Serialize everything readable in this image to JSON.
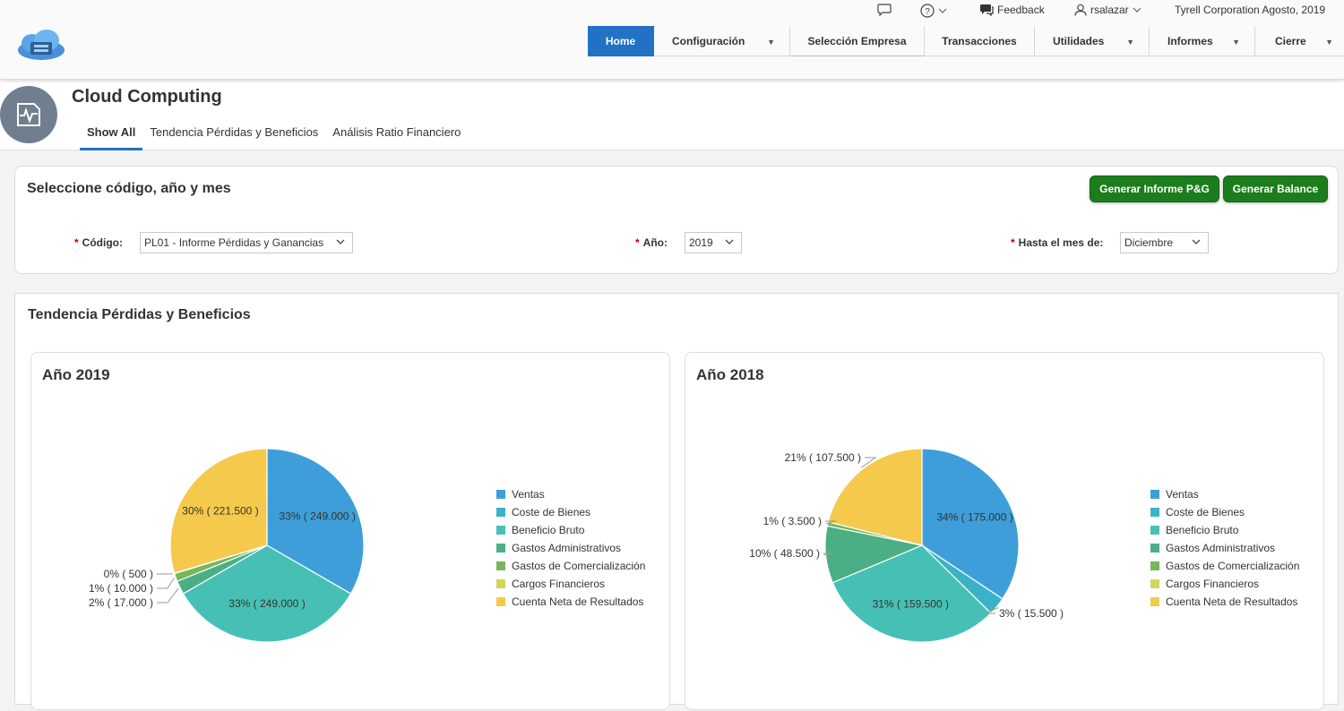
{
  "header": {
    "feedback_label": "Feedback",
    "user": "rsalazar",
    "company_date": "Tyrell Corporation Agosto, 2019",
    "nav": [
      {
        "label": "Home",
        "active": true,
        "dropdown": false
      },
      {
        "label": "Configuración",
        "active": false,
        "dropdown": true
      },
      {
        "label": "Selección Empresa",
        "active": false,
        "dropdown": false
      },
      {
        "label": "Transacciones",
        "active": false,
        "dropdown": false
      },
      {
        "label": "Utilidades",
        "active": false,
        "dropdown": true
      },
      {
        "label": "Informes",
        "active": false,
        "dropdown": true
      },
      {
        "label": "Cierre",
        "active": false,
        "dropdown": true
      }
    ]
  },
  "page": {
    "title": "Cloud Computing",
    "tabs": [
      {
        "label": "Show All",
        "active": true
      },
      {
        "label": "Tendencia Pérdidas y Beneficios",
        "active": false
      },
      {
        "label": "Análisis Ratio Financiero",
        "active": false
      }
    ]
  },
  "filters": {
    "title": "Seleccione código, año y mes",
    "btn_pg": "Generar Informe P&G",
    "btn_balance": "Generar Balance",
    "codigo_label": "Código:",
    "codigo_value": "PL01 - Informe Pérdidas y Ganancias",
    "anio_label": "Año:",
    "anio_value": "2019",
    "mes_label": "Hasta el mes de:",
    "mes_value": "Diciembre"
  },
  "section_title": "Tendencia Pérdidas y Beneficios",
  "colors": {
    "accent": "#2172c5",
    "button_green": "#1c7d1c",
    "legend": [
      "#3e9ed9",
      "#3ab3c8",
      "#46c0b5",
      "#4aaf84",
      "#78b55c",
      "#cfd65a",
      "#f5c94c"
    ]
  },
  "chart_data": [
    {
      "type": "pie",
      "title": "Año 2019",
      "legend": [
        "Ventas",
        "Coste de Bienes",
        "Beneficio Bruto",
        "Gastos Administrativos",
        "Gastos de Comercialización",
        "Cargos Financieros",
        "Cuenta Neta de Resultados"
      ],
      "labels": [
        "Ventas",
        "Beneficio Bruto",
        "Gastos Administrativos",
        "Gastos de Comercialización",
        "Cargos Financieros",
        "Cuenta Neta de Resultados"
      ],
      "values": [
        249000,
        249000,
        17000,
        10000,
        500,
        221500
      ],
      "slice_labels": [
        "33% ( 249.000 )",
        "33% ( 249.000 )",
        "2% ( 17.000 )",
        "1% ( 10.000 )",
        "0% ( 500 )",
        "30% ( 221.500 )"
      ]
    },
    {
      "type": "pie",
      "title": "Año 2018",
      "legend": [
        "Ventas",
        "Coste de Bienes",
        "Beneficio Bruto",
        "Gastos Administrativos",
        "Gastos de Comercialización",
        "Cargos Financieros",
        "Cuenta Neta de Resultados"
      ],
      "labels": [
        "Ventas",
        "Coste de Bienes",
        "Beneficio Bruto",
        "Gastos Administrativos",
        "Gastos de Comercialización",
        "Cuenta Neta de Resultados"
      ],
      "values": [
        175000,
        15500,
        159500,
        48500,
        3500,
        107500
      ],
      "slice_labels": [
        "34% ( 175.000 )",
        "3% ( 15.500 )",
        "31% ( 159.500 )",
        "10% ( 48.500 )",
        "1% ( 3.500 )",
        "21% ( 107.500 )"
      ]
    }
  ]
}
